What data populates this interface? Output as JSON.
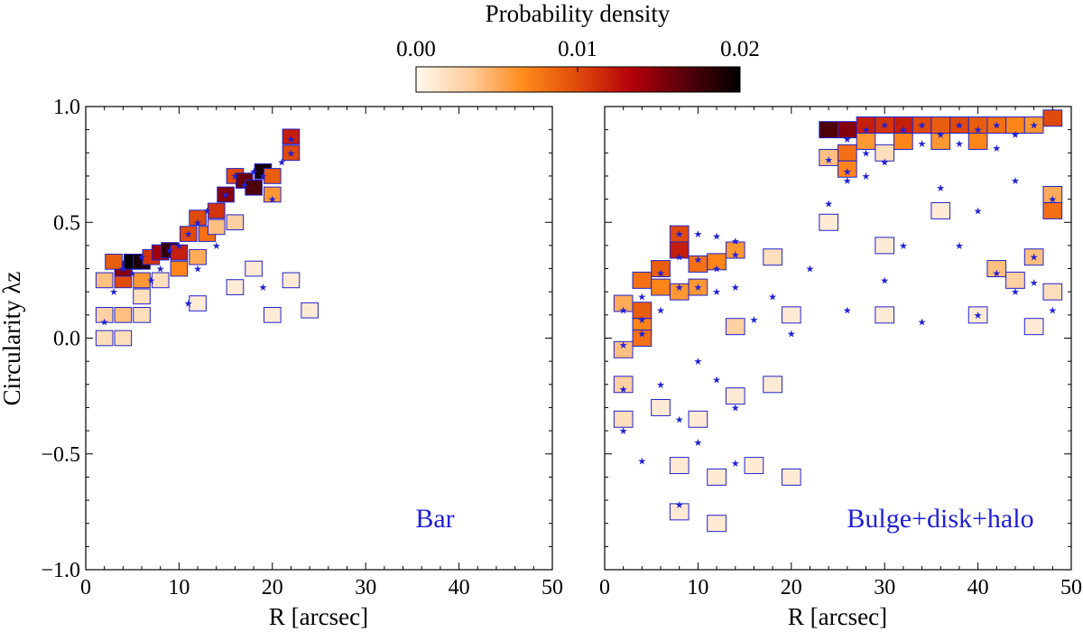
{
  "colorbar": {
    "title": "Probability density",
    "ticks": [
      "0.00",
      "0.01",
      "0.02"
    ],
    "range": [
      0,
      0.02
    ],
    "stops": [
      "#fff8ef",
      "#ffcc99",
      "#ff8a1a",
      "#e04a0a",
      "#b3000a",
      "#55000a",
      "#000000"
    ]
  },
  "chart_data": [
    {
      "type": "heatmap",
      "panel": "left",
      "annotation": "Bar",
      "xlabel": "R [arcsec]",
      "ylabel": "Circularity λz",
      "xlim": [
        0,
        50
      ],
      "ylim": [
        -1.0,
        1.0
      ],
      "xticks": [
        "0",
        "10",
        "20",
        "30",
        "40",
        "50"
      ],
      "yticks": [
        "−1.0",
        "−0.5",
        "0.0",
        "0.5",
        "1.0"
      ],
      "grid": false,
      "cell_size": {
        "dR": 1.8,
        "dlambda": 0.065
      },
      "cells": [
        [
          2,
          0.0,
          0.1
        ],
        [
          4,
          0.0,
          0.1
        ],
        [
          2,
          0.1,
          0.15
        ],
        [
          4,
          0.1,
          0.2
        ],
        [
          6,
          0.1,
          0.1
        ],
        [
          6,
          0.18,
          0.1
        ],
        [
          2,
          0.25,
          0.2
        ],
        [
          4,
          0.25,
          0.5
        ],
        [
          6,
          0.25,
          0.3
        ],
        [
          8,
          0.25,
          0.1
        ],
        [
          4,
          0.3,
          0.75
        ],
        [
          5,
          0.33,
          1.0
        ],
        [
          6,
          0.33,
          0.95
        ],
        [
          3,
          0.33,
          0.45
        ],
        [
          7,
          0.35,
          0.55
        ],
        [
          8,
          0.37,
          0.7
        ],
        [
          9,
          0.38,
          0.9
        ],
        [
          10,
          0.37,
          0.6
        ],
        [
          10,
          0.3,
          0.35
        ],
        [
          12,
          0.35,
          0.25
        ],
        [
          11,
          0.45,
          0.5
        ],
        [
          13,
          0.45,
          0.4
        ],
        [
          12,
          0.52,
          0.5
        ],
        [
          14,
          0.55,
          0.55
        ],
        [
          15,
          0.62,
          0.75
        ],
        [
          16,
          0.7,
          0.5
        ],
        [
          17,
          0.68,
          0.8
        ],
        [
          18,
          0.65,
          0.85
        ],
        [
          19,
          0.72,
          0.95
        ],
        [
          20,
          0.7,
          0.45
        ],
        [
          20,
          0.62,
          0.3
        ],
        [
          22,
          0.8,
          0.5
        ],
        [
          22,
          0.87,
          0.6
        ],
        [
          14,
          0.48,
          0.2
        ],
        [
          16,
          0.5,
          0.15
        ],
        [
          12,
          0.15,
          0.05
        ],
        [
          16,
          0.22,
          0.05
        ],
        [
          20,
          0.1,
          0.05
        ],
        [
          24,
          0.12,
          0.05
        ],
        [
          22,
          0.25,
          0.05
        ],
        [
          18,
          0.3,
          0.05
        ]
      ],
      "stars": [
        [
          2,
          0.07
        ],
        [
          3,
          0.2
        ],
        [
          5,
          0.28
        ],
        [
          6,
          0.35
        ],
        [
          4,
          0.3
        ],
        [
          8,
          0.3
        ],
        [
          9,
          0.38
        ],
        [
          10,
          0.4
        ],
        [
          11,
          0.45
        ],
        [
          12,
          0.5
        ],
        [
          13,
          0.55
        ],
        [
          15,
          0.62
        ],
        [
          16,
          0.7
        ],
        [
          17,
          0.66
        ],
        [
          18,
          0.72
        ],
        [
          19,
          0.7
        ],
        [
          20,
          0.6
        ],
        [
          21,
          0.76
        ],
        [
          22,
          0.8
        ],
        [
          22,
          0.86
        ],
        [
          11,
          0.15
        ],
        [
          12,
          0.3
        ],
        [
          14,
          0.4
        ],
        [
          19,
          0.22
        ],
        [
          7,
          0.25
        ]
      ]
    },
    {
      "type": "heatmap",
      "panel": "right",
      "annotation": "Bulge+disk+halo",
      "xlabel": "R [arcsec]",
      "ylabel": "",
      "xlim": [
        0,
        50
      ],
      "ylim": [
        -1.0,
        1.0
      ],
      "xticks": [
        "0",
        "10",
        "20",
        "30",
        "40",
        "50"
      ],
      "yticks": [],
      "grid": false,
      "cell_size": {
        "dR": 2.0,
        "dlambda": 0.07
      },
      "cells": [
        [
          24,
          0.9,
          0.85
        ],
        [
          26,
          0.9,
          0.75
        ],
        [
          28,
          0.92,
          0.6
        ],
        [
          30,
          0.92,
          0.55
        ],
        [
          32,
          0.92,
          0.6
        ],
        [
          34,
          0.92,
          0.5
        ],
        [
          36,
          0.92,
          0.45
        ],
        [
          38,
          0.92,
          0.5
        ],
        [
          40,
          0.92,
          0.45
        ],
        [
          42,
          0.92,
          0.4
        ],
        [
          44,
          0.92,
          0.35
        ],
        [
          46,
          0.92,
          0.3
        ],
        [
          48,
          0.95,
          0.5
        ],
        [
          28,
          0.85,
          0.3
        ],
        [
          32,
          0.85,
          0.35
        ],
        [
          36,
          0.85,
          0.3
        ],
        [
          40,
          0.85,
          0.35
        ],
        [
          26,
          0.8,
          0.4
        ],
        [
          26,
          0.73,
          0.35
        ],
        [
          24,
          0.78,
          0.2
        ],
        [
          30,
          0.8,
          0.1
        ],
        [
          48,
          0.55,
          0.4
        ],
        [
          48,
          0.62,
          0.25
        ],
        [
          8,
          0.38,
          0.6
        ],
        [
          8,
          0.45,
          0.5
        ],
        [
          6,
          0.3,
          0.45
        ],
        [
          10,
          0.32,
          0.4
        ],
        [
          12,
          0.33,
          0.35
        ],
        [
          14,
          0.38,
          0.3
        ],
        [
          4,
          0.25,
          0.4
        ],
        [
          6,
          0.22,
          0.35
        ],
        [
          8,
          0.2,
          0.3
        ],
        [
          10,
          0.22,
          0.3
        ],
        [
          4,
          0.12,
          0.45
        ],
        [
          4,
          0.05,
          0.35
        ],
        [
          4,
          0.0,
          0.4
        ],
        [
          2,
          0.15,
          0.25
        ],
        [
          2,
          -0.05,
          0.2
        ],
        [
          2,
          -0.2,
          0.15
        ],
        [
          2,
          -0.35,
          0.1
        ],
        [
          14,
          0.05,
          0.15
        ],
        [
          18,
          0.35,
          0.1
        ],
        [
          42,
          0.3,
          0.2
        ],
        [
          44,
          0.25,
          0.15
        ],
        [
          46,
          0.35,
          0.2
        ],
        [
          48,
          0.2,
          0.1
        ],
        [
          24,
          0.5,
          0.05
        ],
        [
          30,
          0.4,
          0.05
        ],
        [
          36,
          0.55,
          0.05
        ],
        [
          20,
          0.1,
          0.05
        ],
        [
          30,
          0.1,
          0.05
        ],
        [
          40,
          0.1,
          0.05
        ],
        [
          46,
          0.05,
          0.05
        ],
        [
          6,
          -0.3,
          0.05
        ],
        [
          10,
          -0.35,
          0.05
        ],
        [
          14,
          -0.25,
          0.05
        ],
        [
          18,
          -0.2,
          0.05
        ],
        [
          8,
          -0.55,
          0.05
        ],
        [
          12,
          -0.6,
          0.05
        ],
        [
          16,
          -0.55,
          0.05
        ],
        [
          20,
          -0.6,
          0.05
        ],
        [
          8,
          -0.75,
          0.05
        ],
        [
          12,
          -0.8,
          0.05
        ]
      ],
      "stars": [
        [
          28,
          0.9
        ],
        [
          30,
          0.92
        ],
        [
          32,
          0.9
        ],
        [
          34,
          0.92
        ],
        [
          36,
          0.88
        ],
        [
          38,
          0.92
        ],
        [
          40,
          0.9
        ],
        [
          42,
          0.92
        ],
        [
          44,
          0.88
        ],
        [
          46,
          0.92
        ],
        [
          26,
          0.86
        ],
        [
          28,
          0.8
        ],
        [
          30,
          0.76
        ],
        [
          34,
          0.84
        ],
        [
          38,
          0.84
        ],
        [
          42,
          0.82
        ],
        [
          26,
          0.72
        ],
        [
          24,
          0.77
        ],
        [
          28,
          0.7
        ],
        [
          26,
          0.68
        ],
        [
          24,
          0.58
        ],
        [
          36,
          0.65
        ],
        [
          44,
          0.68
        ],
        [
          48,
          0.6
        ],
        [
          8,
          0.45
        ],
        [
          10,
          0.45
        ],
        [
          12,
          0.44
        ],
        [
          14,
          0.42
        ],
        [
          8,
          0.35
        ],
        [
          10,
          0.34
        ],
        [
          12,
          0.3
        ],
        [
          14,
          0.36
        ],
        [
          6,
          0.28
        ],
        [
          8,
          0.22
        ],
        [
          10,
          0.22
        ],
        [
          12,
          0.2
        ],
        [
          14,
          0.22
        ],
        [
          4,
          0.18
        ],
        [
          6,
          0.12
        ],
        [
          4,
          0.08
        ],
        [
          4,
          0.02
        ],
        [
          2,
          0.12
        ],
        [
          2,
          -0.03
        ],
        [
          2,
          -0.22
        ],
        [
          2,
          -0.4
        ],
        [
          6,
          -0.2
        ],
        [
          10,
          -0.1
        ],
        [
          12,
          -0.18
        ],
        [
          8,
          -0.35
        ],
        [
          14,
          -0.3
        ],
        [
          10,
          -0.45
        ],
        [
          4,
          -0.53
        ],
        [
          14,
          -0.54
        ],
        [
          8,
          -0.72
        ],
        [
          16,
          0.08
        ],
        [
          18,
          0.18
        ],
        [
          20,
          0.02
        ],
        [
          22,
          0.3
        ],
        [
          26,
          0.12
        ],
        [
          30,
          0.25
        ],
        [
          32,
          0.4
        ],
        [
          34,
          0.07
        ],
        [
          38,
          0.4
        ],
        [
          40,
          0.1
        ],
        [
          42,
          0.28
        ],
        [
          44,
          0.2
        ],
        [
          46,
          0.24
        ],
        [
          48,
          0.12
        ],
        [
          46,
          0.35
        ],
        [
          40,
          0.55
        ]
      ]
    }
  ]
}
